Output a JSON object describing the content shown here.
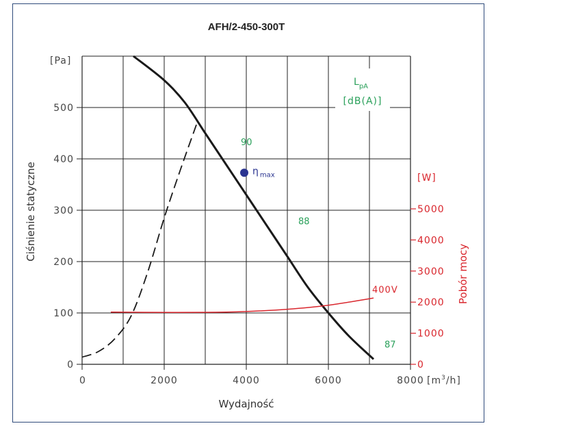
{
  "chart_data": {
    "type": "line",
    "title": "AFH/2-450-300T",
    "xlabel": "Wydajność",
    "x_unit": "[m³/h]",
    "ylabel": "Ciśnienie statyczne",
    "y_unit": "[Pa]",
    "y2label": "Pobór mocy",
    "y2_unit": "[W]",
    "xlim": [
      0,
      8000
    ],
    "ylim": [
      0,
      600
    ],
    "y2lim": [
      0,
      5500
    ],
    "x_ticks": [
      "0",
      "2000",
      "4000",
      "6000",
      "8000"
    ],
    "y_ticks": [
      "0",
      "100",
      "200",
      "300",
      "400",
      "500"
    ],
    "y2_ticks": [
      "0",
      "1000",
      "2000",
      "3000",
      "4000",
      "5000"
    ],
    "grid": true,
    "noise_unit": "[dB(A)]",
    "noise_symbol": "L",
    "noise_symbol_sub": "pA",
    "series": [
      {
        "id": "pressure",
        "axis": "left",
        "color": "#1a1a1a",
        "style": "solid",
        "points": [
          [
            1250,
            600
          ],
          [
            2000,
            553
          ],
          [
            2500,
            510
          ],
          [
            3000,
            450
          ],
          [
            3500,
            390
          ],
          [
            4000,
            330
          ],
          [
            4500,
            270
          ],
          [
            5000,
            210
          ],
          [
            5500,
            150
          ],
          [
            6000,
            100
          ],
          [
            6500,
            55
          ],
          [
            7100,
            10
          ]
        ]
      },
      {
        "id": "system",
        "axis": "left",
        "color": "#1a1a1a",
        "style": "dashed",
        "points": [
          [
            0,
            14
          ],
          [
            400,
            25
          ],
          [
            800,
            50
          ],
          [
            1200,
            95
          ],
          [
            1600,
            180
          ],
          [
            2000,
            285
          ],
          [
            2400,
            380
          ],
          [
            2800,
            470
          ]
        ]
      },
      {
        "id": "power",
        "name": "400V",
        "axis": "right",
        "color": "#d9262d",
        "style": "solid",
        "points": [
          [
            700,
            1680
          ],
          [
            1500,
            1670
          ],
          [
            3000,
            1670
          ],
          [
            4000,
            1700
          ],
          [
            5000,
            1770
          ],
          [
            6000,
            1900
          ],
          [
            7100,
            2130
          ]
        ]
      }
    ],
    "annotations": [
      {
        "text": "90",
        "x": 4000,
        "y": 427,
        "color": "green"
      },
      {
        "text": "88",
        "x": 5400,
        "y": 273,
        "color": "green"
      },
      {
        "text": "87",
        "x": 7500,
        "y": 33,
        "color": "green"
      }
    ],
    "eta_max": {
      "label": "η",
      "sub": "max",
      "x": 3950,
      "y": 373
    }
  }
}
